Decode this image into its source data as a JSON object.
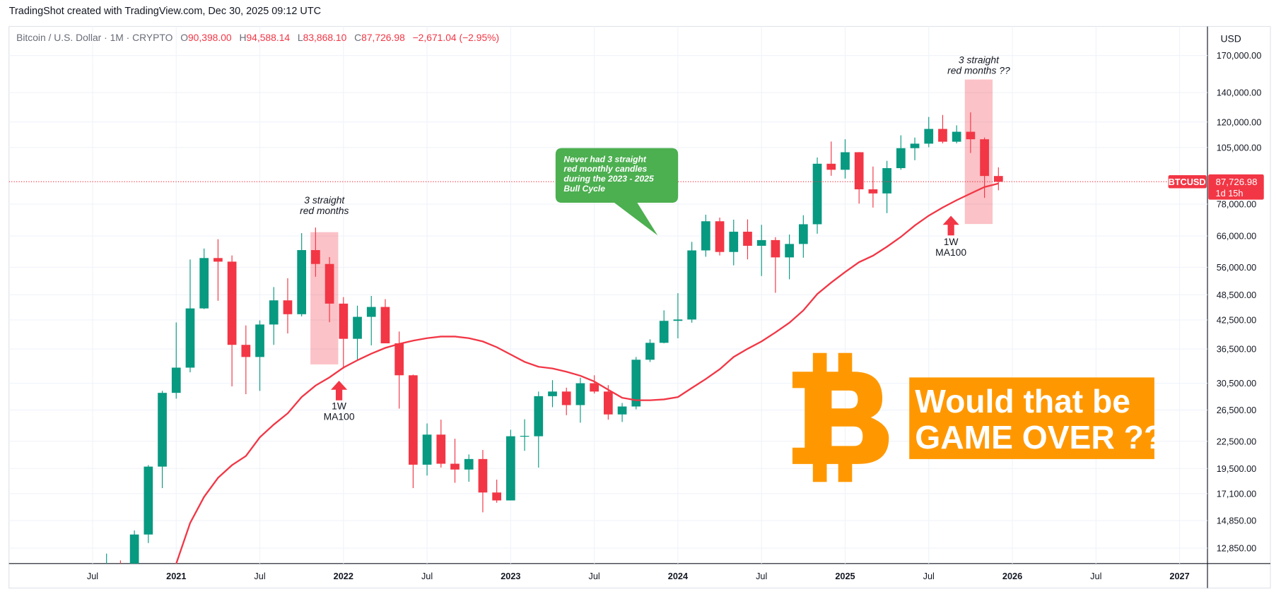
{
  "header": {
    "title": "TradingShot created with TradingView.com, Dec 30, 2025 09:12 UTC"
  },
  "chart_data": {
    "type": "candlestick",
    "legend": {
      "symbol": "Bitcoin / U.S. Dollar · 1M · CRYPTO",
      "items": [
        {
          "key": "O",
          "label": "90,398.00"
        },
        {
          "key": "H",
          "label": "94,588.14"
        },
        {
          "key": "L",
          "label": "83,868.10"
        },
        {
          "key": "C",
          "label": "87,726.98"
        }
      ],
      "change": "−2,671.04 (−2.95%)"
    },
    "currency": "USD",
    "log": true,
    "grid": true,
    "up_color": "#089981",
    "down_color": "#f23645",
    "xlim": [
      "2020-01",
      "2027-03"
    ],
    "xticks": [
      {
        "value": "2020-07",
        "label": "Jul"
      },
      {
        "value": "2021-01",
        "label": "2021"
      },
      {
        "value": "2021-07",
        "label": "Jul"
      },
      {
        "value": "2022-01",
        "label": "2022"
      },
      {
        "value": "2022-07",
        "label": "Jul"
      },
      {
        "value": "2023-01",
        "label": "2023"
      },
      {
        "value": "2023-07",
        "label": "Jul"
      },
      {
        "value": "2024-01",
        "label": "2024"
      },
      {
        "value": "2024-07",
        "label": "Jul"
      },
      {
        "value": "2025-01",
        "label": "2025"
      },
      {
        "value": "2025-07",
        "label": "Jul"
      },
      {
        "value": "2026-01",
        "label": "2026"
      },
      {
        "value": "2026-07",
        "label": "Jul"
      },
      {
        "value": "2027-01",
        "label": "2027"
      }
    ],
    "ylim": [
      11850,
      198000
    ],
    "yticks": [
      {
        "value": 12850,
        "label": "12,850.00"
      },
      {
        "value": 14850,
        "label": "14,850.00"
      },
      {
        "value": 17100,
        "label": "17,100.00"
      },
      {
        "value": 19500,
        "label": "19,500.00"
      },
      {
        "value": 22500,
        "label": "22,500.00"
      },
      {
        "value": 26500,
        "label": "26,500.00"
      },
      {
        "value": 30500,
        "label": "30,500.00"
      },
      {
        "value": 36500,
        "label": "36,500.00"
      },
      {
        "value": 42500,
        "label": "42,500.00"
      },
      {
        "value": 48500,
        "label": "48,500.00"
      },
      {
        "value": 56000,
        "label": "56,000.00"
      },
      {
        "value": 66000,
        "label": "66,000.00"
      },
      {
        "value": 78000,
        "label": "78,000.00"
      },
      {
        "value": 105000,
        "label": "105,000.00"
      },
      {
        "value": 120000,
        "label": "120,000.00"
      },
      {
        "value": 140000,
        "label": "140,000.00"
      },
      {
        "value": 170000,
        "label": "170,000.00"
      }
    ],
    "x": [
      "2020-08",
      "2020-09",
      "2020-10",
      "2020-11",
      "2020-12",
      "2021-01",
      "2021-02",
      "2021-03",
      "2021-04",
      "2021-05",
      "2021-06",
      "2021-07",
      "2021-08",
      "2021-09",
      "2021-10",
      "2021-11",
      "2021-12",
      "2022-01",
      "2022-02",
      "2022-03",
      "2022-04",
      "2022-05",
      "2022-06",
      "2022-07",
      "2022-08",
      "2022-09",
      "2022-10",
      "2022-11",
      "2022-12",
      "2023-01",
      "2023-02",
      "2023-03",
      "2023-04",
      "2023-05",
      "2023-06",
      "2023-07",
      "2023-08",
      "2023-09",
      "2023-10",
      "2023-11",
      "2023-12",
      "2024-01",
      "2024-02",
      "2024-03",
      "2024-04",
      "2024-05",
      "2024-06",
      "2024-07",
      "2024-08",
      "2024-09",
      "2024-10",
      "2024-11",
      "2024-12",
      "2025-01",
      "2025-02",
      "2025-03",
      "2025-04",
      "2025-05",
      "2025-06",
      "2025-07",
      "2025-08",
      "2025-09",
      "2025-10",
      "2025-11",
      "2025-12"
    ],
    "open": [
      11350,
      11655,
      10776,
      13800,
      19700,
      29000,
      33100,
      45150,
      58800,
      57700,
      37300,
      35000,
      41500,
      47100,
      43800,
      61300,
      57000,
      46300,
      38500,
      43200,
      45500,
      37600,
      31800,
      19900,
      23300,
      20000,
      19400,
      20500,
      17200,
      16500,
      23100,
      23100,
      28500,
      29200,
      27200,
      30500,
      29200,
      25900,
      27000,
      34500,
      37700,
      42300,
      42600,
      61200,
      71300,
      60700,
      67500,
      62700,
      64600,
      59000,
      63300,
      70200,
      96400,
      93400,
      102400,
      84300,
      82500,
      94200,
      104600,
      107100,
      115700,
      108200,
      114000,
      109600,
      90398
    ],
    "high": [
      12486,
      12050,
      14100,
      19860,
      29300,
      41950,
      58350,
      61800,
      64900,
      59600,
      41300,
      42400,
      50500,
      52900,
      67000,
      69000,
      59100,
      47900,
      45800,
      48200,
      47400,
      40000,
      31900,
      24700,
      25200,
      22800,
      21000,
      21500,
      18400,
      23900,
      25250,
      29200,
      31000,
      29800,
      31400,
      31800,
      30200,
      27500,
      35000,
      38400,
      44700,
      48900,
      64000,
      73800,
      72700,
      71900,
      72000,
      70000,
      65600,
      66500,
      73600,
      99600,
      108300,
      109600,
      102500,
      95000,
      97900,
      111900,
      110600,
      123200,
      124500,
      117900,
      126200,
      110600,
      94588.14
    ],
    "low": [
      10550,
      9825,
      10400,
      13200,
      17600,
      28130,
      32300,
      45000,
      47000,
      30000,
      28800,
      29300,
      37300,
      39600,
      43300,
      53300,
      42000,
      32900,
      34300,
      37200,
      37700,
      26700,
      17600,
      18800,
      19600,
      18100,
      18200,
      15500,
      16300,
      16500,
      21400,
      19600,
      26900,
      25800,
      24800,
      28900,
      25200,
      24900,
      26600,
      34100,
      37600,
      38600,
      41900,
      59200,
      59600,
      56600,
      58400,
      53500,
      49000,
      52600,
      58900,
      66800,
      90500,
      89200,
      78200,
      76600,
      74400,
      93400,
      98200,
      105100,
      107300,
      107300,
      102000,
      80600,
      83868.1
    ],
    "close": [
      11655,
      10776,
      13800,
      19700,
      29000,
      33100,
      45150,
      58800,
      57700,
      37300,
      35000,
      41500,
      47100,
      43800,
      61300,
      57000,
      46300,
      38500,
      43200,
      45500,
      37600,
      31800,
      19900,
      23300,
      20000,
      19400,
      20500,
      17200,
      16500,
      23100,
      23150,
      28500,
      29200,
      27200,
      30500,
      29200,
      25900,
      27000,
      34500,
      37700,
      42300,
      42600,
      61200,
      71300,
      60700,
      67500,
      62700,
      64600,
      59000,
      63300,
      70200,
      96400,
      93400,
      102400,
      84300,
      82500,
      94200,
      104600,
      107100,
      115700,
      108200,
      114000,
      109600,
      90400,
      87726.98
    ],
    "price_label": {
      "symbol": "BTCUSD",
      "value": 87726.98,
      "label": "87,726.98",
      "countdown": "1d 15h"
    },
    "moving_average": {
      "color": "#f23645",
      "x": [
        "2021-01",
        "2021-02",
        "2021-03",
        "2021-04",
        "2021-05",
        "2021-06",
        "2021-07",
        "2021-08",
        "2021-09",
        "2021-10",
        "2021-11",
        "2021-12",
        "2022-01",
        "2022-02",
        "2022-03",
        "2022-04",
        "2022-05",
        "2022-06",
        "2022-07",
        "2022-08",
        "2022-09",
        "2022-10",
        "2022-11",
        "2022-12",
        "2023-01",
        "2023-02",
        "2023-03",
        "2023-04",
        "2023-05",
        "2023-06",
        "2023-07",
        "2023-08",
        "2023-09",
        "2023-10",
        "2023-11",
        "2023-12",
        "2024-01",
        "2024-02",
        "2024-03",
        "2024-04",
        "2024-05",
        "2024-06",
        "2024-07",
        "2024-08",
        "2024-09",
        "2024-10",
        "2024-11",
        "2024-12",
        "2025-01",
        "2025-02",
        "2025-03",
        "2025-04",
        "2025-05",
        "2025-06",
        "2025-07",
        "2025-08",
        "2025-09",
        "2025-10",
        "2025-11",
        "2025-12"
      ],
      "values": [
        11846,
        14670,
        16810,
        18580,
        19850,
        20830,
        22960,
        24560,
        26050,
        28370,
        30130,
        31450,
        33110,
        34410,
        35610,
        36700,
        37490,
        38140,
        38630,
        38960,
        38960,
        38630,
        37970,
        36850,
        35450,
        34110,
        33250,
        32960,
        32400,
        31720,
        30790,
        29490,
        28260,
        27900,
        27900,
        28020,
        28370,
        29750,
        31180,
        32830,
        35000,
        36530,
        37970,
        39810,
        41900,
        44680,
        48690,
        51700,
        54660,
        57530,
        59530,
        62410,
        65700,
        69760,
        73420,
        76650,
        79660,
        82460,
        85310,
        86900
      ]
    },
    "annotations": [
      {
        "lines": [
          "3 straight",
          "red months"
        ]
      },
      {
        "lines": [
          "3 straight",
          "red months ??"
        ]
      },
      {
        "lines": [
          "1W",
          "MA100"
        ]
      },
      {
        "lines": [
          "1W",
          "MA100"
        ]
      },
      {
        "lines": [
          "Never had 3 straight",
          "red monthly candles",
          "during the 2023 - 2025",
          "Bull Cycle"
        ]
      },
      {
        "lines": [
          "Would that be",
          "GAME OVER ??"
        ]
      }
    ]
  }
}
